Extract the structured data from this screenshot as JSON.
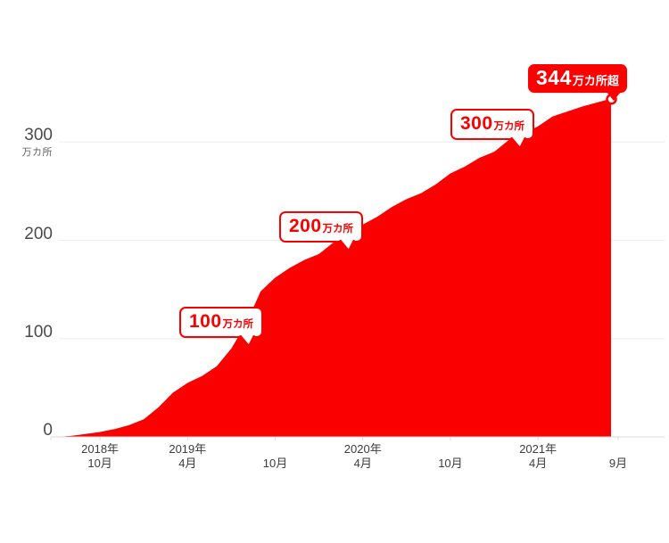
{
  "chart_data": {
    "type": "area",
    "title": "",
    "unit": "万カ所",
    "x": [
      "2018-07",
      "2018-08",
      "2018-09",
      "2018-10",
      "2018-11",
      "2018-12",
      "2019-01",
      "2019-02",
      "2019-03",
      "2019-04",
      "2019-05",
      "2019-06",
      "2019-07",
      "2019-08",
      "2019-09",
      "2019-10",
      "2019-11",
      "2019-12",
      "2020-01",
      "2020-02",
      "2020-03",
      "2020-04",
      "2020-05",
      "2020-06",
      "2020-07",
      "2020-08",
      "2020-09",
      "2020-10",
      "2020-11",
      "2020-12",
      "2021-01",
      "2021-02",
      "2021-03",
      "2021-04",
      "2021-05",
      "2021-06",
      "2021-07",
      "2021-08",
      "2021-09"
    ],
    "values": [
      0,
      1,
      3,
      5,
      8,
      12,
      18,
      30,
      45,
      55,
      62,
      72,
      90,
      115,
      148,
      162,
      172,
      180,
      186,
      198,
      208,
      216,
      224,
      234,
      242,
      248,
      257,
      268,
      275,
      284,
      290,
      302,
      308,
      316,
      326,
      331,
      336,
      340,
      344
    ],
    "ylim": [
      0,
      360
    ],
    "grid": "horizontal-only",
    "legend": "none",
    "yticks": [
      {
        "value": 0,
        "label": "0",
        "sub": ""
      },
      {
        "value": 100,
        "label": "100",
        "sub": ""
      },
      {
        "value": 200,
        "label": "200",
        "sub": ""
      },
      {
        "value": 300,
        "label": "300",
        "sub": "万カ所"
      }
    ],
    "xticks": [
      {
        "month": "2018-10",
        "line1": "2018年",
        "line2": "10月"
      },
      {
        "month": "2019-04",
        "line1": "2019年",
        "line2": "4月"
      },
      {
        "month": "2019-10",
        "line1": "",
        "line2": "10月"
      },
      {
        "month": "2020-04",
        "line1": "2020年",
        "line2": "4月"
      },
      {
        "month": "2020-10",
        "line1": "",
        "line2": "10月"
      },
      {
        "month": "2021-04",
        "line1": "2021年",
        "line2": "4月"
      },
      {
        "month": "2021-09",
        "line1": "",
        "line2": "9月"
      }
    ],
    "milestones": [
      {
        "value": 100,
        "number": "100",
        "suffix": "万カ所",
        "variant": "outline",
        "marker": false
      },
      {
        "value": 200,
        "number": "200",
        "suffix": "万カ所",
        "variant": "outline",
        "marker": false
      },
      {
        "value": 300,
        "number": "300",
        "suffix": "万カ所",
        "variant": "outline",
        "marker": false
      },
      {
        "value": 344,
        "number": "344",
        "suffix": "万カ所超",
        "variant": "filled",
        "marker": true
      }
    ],
    "colors": {
      "accent": "#fa0000",
      "grid": "#ededed",
      "baseline": "#d9d9d9",
      "tick": "#dddddd",
      "axis_text": "#4a4a4a",
      "background": "#ffffff"
    }
  }
}
